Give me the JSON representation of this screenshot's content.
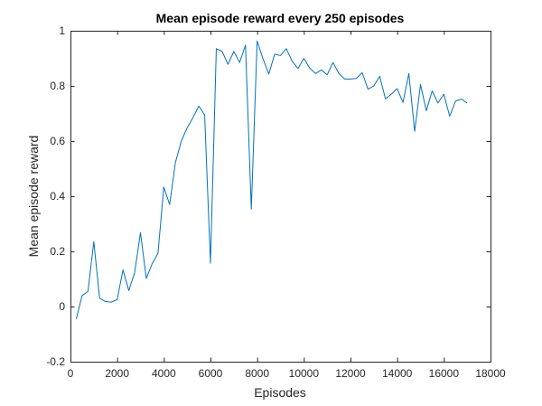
{
  "chart_data": {
    "type": "line",
    "title": "Mean episode reward every 250 episodes",
    "xlabel": "Episodes",
    "ylabel": "Mean episode reward",
    "xlim": [
      0,
      18000
    ],
    "ylim": [
      -0.2,
      1
    ],
    "xticks": [
      0,
      2000,
      4000,
      6000,
      8000,
      10000,
      12000,
      14000,
      16000,
      18000
    ],
    "yticks": [
      -0.2,
      0,
      0.2,
      0.4,
      0.6,
      0.8,
      1
    ],
    "xtick_labels": [
      "0",
      "2000",
      "4000",
      "6000",
      "8000",
      "10000",
      "12000",
      "14000",
      "16000",
      "18000"
    ],
    "ytick_labels": [
      "-0.2",
      "0",
      "0.2",
      "0.4",
      "0.6",
      "0.8",
      "1"
    ],
    "grid": false,
    "line_color": "#0072BD",
    "series": [
      {
        "x": [
          250,
          500,
          750,
          1000,
          1250,
          1500,
          1750,
          2000,
          2250,
          2500,
          2750,
          3000,
          3250,
          3500,
          3750,
          4000,
          4250,
          4500,
          4750,
          5000,
          5250,
          5500,
          5750,
          6000,
          6250,
          6500,
          6750,
          7000,
          7250,
          7500,
          7750,
          8000,
          8250,
          8500,
          8750,
          9000,
          9250,
          9500,
          9750,
          10000,
          10250,
          10500,
          10750,
          11000,
          11250,
          11500,
          11750,
          12000,
          12250,
          12500,
          12750,
          13000,
          13250,
          13500,
          13750,
          14000,
          14250,
          14500,
          14750,
          15000,
          15250,
          15500,
          15750,
          16000,
          16250,
          16500,
          16750,
          17000
        ],
        "values": [
          -0.045,
          0.04,
          0.055,
          0.235,
          0.03,
          0.018,
          0.016,
          0.025,
          0.133,
          0.058,
          0.123,
          0.268,
          0.102,
          0.155,
          0.193,
          0.433,
          0.37,
          0.523,
          0.6,
          0.648,
          0.685,
          0.727,
          0.695,
          0.157,
          0.935,
          0.925,
          0.878,
          0.925,
          0.885,
          0.948,
          0.353,
          0.963,
          0.898,
          0.843,
          0.915,
          0.91,
          0.935,
          0.89,
          0.863,
          0.9,
          0.865,
          0.845,
          0.858,
          0.84,
          0.885,
          0.845,
          0.825,
          0.825,
          0.827,
          0.848,
          0.788,
          0.8,
          0.835,
          0.753,
          0.77,
          0.79,
          0.74,
          0.845,
          0.635,
          0.805,
          0.71,
          0.782,
          0.738,
          0.77,
          0.69,
          0.745,
          0.752,
          0.738
        ]
      }
    ]
  }
}
